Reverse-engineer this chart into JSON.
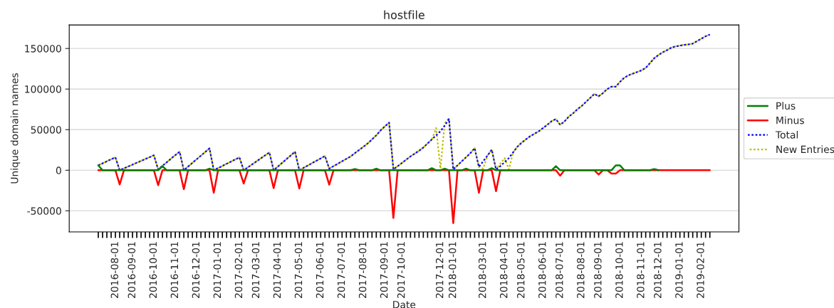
{
  "chart_data": {
    "type": "line",
    "title": "hostfile",
    "xlabel": "Date",
    "ylabel": "Unique domain names",
    "categories": [
      null,
      null,
      null,
      null,
      "2016-08-01",
      null,
      null,
      null,
      "2016-09-01",
      null,
      null,
      null,
      null,
      "2016-10-01",
      null,
      null,
      null,
      null,
      "2016-11-01",
      null,
      null,
      null,
      null,
      "2016-12-01",
      null,
      null,
      null,
      null,
      "2017-01-01",
      null,
      null,
      null,
      null,
      "2017-02-01",
      null,
      null,
      null,
      "2017-03-01",
      null,
      null,
      null,
      null,
      "2017-04-01",
      null,
      null,
      null,
      null,
      "2017-05-01",
      null,
      null,
      null,
      null,
      "2017-06-01",
      null,
      null,
      null,
      null,
      "2017-07-01",
      null,
      null,
      null,
      null,
      "2017-08-01",
      null,
      null,
      null,
      null,
      "2017-09-01",
      null,
      null,
      null,
      "2017-10-01",
      null,
      null,
      null,
      null,
      null,
      null,
      null,
      null,
      "2017-12-01",
      null,
      null,
      "2018-01-01",
      null,
      null,
      null,
      null,
      null,
      null,
      "2018-03-01",
      null,
      null,
      null,
      null,
      "2018-04-01",
      null,
      null,
      null,
      "2018-05-01",
      null,
      null,
      null,
      null,
      "2018-06-01",
      null,
      null,
      null,
      "2018-07-01",
      null,
      null,
      null,
      null,
      "2018-08-01",
      null,
      null,
      null,
      "2018-09-01",
      null,
      null,
      null,
      null,
      "2018-10-01",
      null,
      null,
      null,
      null,
      "2018-11-01",
      null,
      null,
      null,
      "2018-12-01",
      null,
      null,
      null,
      null,
      "2019-01-01",
      null,
      null,
      null,
      null,
      "2019-02-01",
      null,
      null
    ],
    "series": [
      {
        "name": "Plus",
        "color": "#008000",
        "line_style": "solid",
        "values": [
          6000,
          0,
          null,
          null,
          null,
          null,
          null,
          null,
          null,
          null,
          null,
          null,
          null,
          null,
          0,
          5000,
          0,
          null,
          null,
          null,
          null,
          null,
          null,
          null,
          null,
          0,
          2000,
          0,
          null,
          null,
          null,
          null,
          null,
          null,
          null,
          null,
          null,
          null,
          null,
          null,
          null,
          null,
          null,
          null,
          null,
          null,
          null,
          null,
          null,
          null,
          null,
          null,
          null,
          null,
          null,
          null,
          null,
          null,
          null,
          0,
          1500,
          0,
          null,
          null,
          0,
          2000,
          0,
          null,
          null,
          null,
          null,
          null,
          null,
          null,
          null,
          null,
          null,
          0,
          2500,
          0,
          0,
          2000,
          0,
          null,
          null,
          0,
          2000,
          0,
          null,
          null,
          null,
          0,
          2500,
          0,
          null,
          null,
          null,
          null,
          null,
          null,
          null,
          null,
          null,
          null,
          null,
          null,
          0,
          5000,
          0,
          null,
          null,
          null,
          null,
          null,
          null,
          null,
          null,
          null,
          null,
          null,
          0,
          6000,
          6000,
          0,
          null,
          null,
          null,
          null,
          null,
          0,
          1500,
          0,
          null,
          null,
          null,
          null,
          null,
          null,
          null,
          null,
          null,
          null,
          null,
          null
        ]
      },
      {
        "name": "Minus",
        "color": "#ff0000",
        "line_style": "solid",
        "values": [
          0,
          0,
          0,
          0,
          0,
          -17500,
          0,
          0,
          0,
          0,
          0,
          0,
          0,
          0,
          -18400,
          0,
          0,
          0,
          0,
          0,
          -23400,
          0,
          0,
          0,
          0,
          0,
          0,
          -27800,
          0,
          0,
          0,
          0,
          0,
          0,
          -16400,
          0,
          0,
          0,
          0,
          0,
          0,
          -22000,
          0,
          0,
          0,
          0,
          0,
          -22500,
          0,
          0,
          0,
          0,
          0,
          0,
          -17800,
          0,
          0,
          0,
          0,
          0,
          0,
          0,
          0,
          0,
          0,
          0,
          0,
          0,
          0,
          -58800,
          0,
          0,
          0,
          0,
          0,
          0,
          0,
          0,
          0,
          0,
          0,
          0,
          0,
          -65200,
          0,
          0,
          0,
          0,
          0,
          -27800,
          0,
          0,
          0,
          -25700,
          0,
          0,
          0,
          0,
          0,
          0,
          0,
          0,
          0,
          0,
          0,
          0,
          0,
          0,
          -6700,
          0,
          0,
          0,
          0,
          0,
          0,
          0,
          0,
          -5300,
          0,
          0,
          -4000,
          -4000,
          0,
          0,
          0,
          0,
          0,
          0,
          0,
          0,
          0,
          0,
          0,
          0,
          0,
          0,
          0,
          0,
          0,
          0,
          0,
          0,
          0,
          0
        ]
      },
      {
        "name": "Total",
        "color": "#0000ff",
        "line_style": "dotted",
        "values": [
          6000,
          8500,
          11000,
          13500,
          15800,
          0,
          2300,
          4600,
          6900,
          9200,
          11500,
          13800,
          16100,
          18400,
          1000,
          5400,
          9800,
          14200,
          18600,
          22800,
          0,
          4500,
          9000,
          13500,
          18000,
          22500,
          27000,
          0,
          2600,
          5200,
          7900,
          10500,
          13200,
          15800,
          0,
          3600,
          7300,
          11000,
          14600,
          18300,
          21900,
          0,
          4600,
          9100,
          13700,
          18200,
          22800,
          0,
          2900,
          5800,
          8800,
          11700,
          14600,
          17500,
          2000,
          5000,
          8000,
          11000,
          14000,
          17000,
          21000,
          25000,
          29000,
          33000,
          38000,
          43000,
          49000,
          54000,
          58700,
          1000,
          5000,
          9000,
          13000,
          17000,
          20500,
          24000,
          28000,
          33000,
          38000,
          43000,
          48000,
          55000,
          63000,
          1000,
          6000,
          11000,
          16000,
          21000,
          27200,
          4000,
          11000,
          18000,
          25400,
          1000,
          5000,
          10000,
          15000,
          22000,
          29000,
          34000,
          38000,
          42000,
          45000,
          48000,
          52000,
          56000,
          60500,
          63000,
          56000,
          60000,
          66000,
          70000,
          75000,
          79000,
          84000,
          89000,
          94000,
          91000,
          95000,
          100000,
          103000,
          103000,
          109000,
          114000,
          117000,
          119000,
          121000,
          123000,
          126000,
          132000,
          138000,
          142000,
          145300,
          148000,
          151000,
          152600,
          153500,
          154500,
          155000,
          156000,
          159000,
          162000,
          165000,
          167200
        ]
      },
      {
        "name": "New Entries",
        "color": "#bfbf00",
        "line_style": "dotted",
        "values": [
          6000,
          8500,
          11000,
          13500,
          15800,
          0,
          2300,
          4600,
          6900,
          9200,
          11500,
          13800,
          16100,
          18400,
          1000,
          5400,
          9800,
          14200,
          18600,
          22800,
          0,
          4500,
          9000,
          13500,
          18000,
          22500,
          27000,
          0,
          2600,
          5200,
          7900,
          10500,
          13200,
          15800,
          0,
          3600,
          7300,
          11000,
          14600,
          18300,
          21900,
          0,
          4600,
          9100,
          13700,
          18200,
          22800,
          0,
          2900,
          5800,
          8800,
          11700,
          14600,
          17500,
          2000,
          5000,
          8000,
          11000,
          14000,
          17000,
          21000,
          25000,
          29000,
          33000,
          38000,
          43000,
          49000,
          54000,
          58700,
          1000,
          5000,
          9000,
          13000,
          17000,
          20500,
          24000,
          28000,
          33000,
          38000,
          52000,
          2000,
          58000,
          64000,
          1000,
          6000,
          11000,
          16000,
          21000,
          27200,
          4000,
          2000,
          18000,
          25400,
          1000,
          8000,
          15000,
          1000,
          22000,
          29000,
          34000,
          38000,
          42000,
          45000,
          48000,
          52000,
          56000,
          60500,
          63000,
          56000,
          60000,
          66000,
          70000,
          75000,
          79000,
          84000,
          89000,
          94000,
          91000,
          95000,
          100000,
          103000,
          103000,
          109000,
          114000,
          117000,
          119000,
          121000,
          123000,
          126000,
          132000,
          138000,
          142000,
          145300,
          148000,
          151000,
          152600,
          153500,
          154500,
          155000,
          156000,
          159000,
          162000,
          165000,
          167200
        ]
      }
    ],
    "ylim": [
      -76000,
      179000
    ],
    "yticks": [
      -50000,
      0,
      50000,
      100000,
      150000
    ],
    "grid": "y",
    "legend": "right",
    "marker": "none"
  }
}
